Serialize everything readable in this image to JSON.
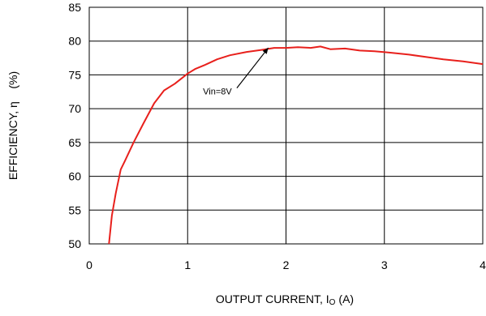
{
  "chart_data": {
    "type": "line",
    "title": "",
    "xlabel": "OUTPUT CURRENT, I",
    "xlabel_sub": "O",
    "xlabel_unit": "(A)",
    "ylabel": "EFFICIENCY, η    (%)",
    "xlim": [
      0,
      4
    ],
    "ylim": [
      50,
      85
    ],
    "x_ticks": [
      0,
      1,
      2,
      3,
      4
    ],
    "y_ticks": [
      50,
      55,
      60,
      65,
      70,
      75,
      80,
      85
    ],
    "grid": true,
    "line_color": "#e8201c",
    "series": [
      {
        "x": [
          0.2,
          0.23,
          0.27,
          0.32,
          0.36,
          0.45,
          0.55,
          0.66,
          0.76,
          0.87,
          1.0,
          1.08,
          1.18,
          1.3,
          1.43,
          1.6,
          1.75,
          1.88,
          2.0,
          2.12,
          2.25,
          2.35,
          2.45,
          2.6,
          2.75,
          2.9,
          3.05,
          3.25,
          3.45,
          3.6,
          3.8,
          4.0
        ],
        "values": [
          50.0,
          54.2,
          57.5,
          61.0,
          62.2,
          65.0,
          67.8,
          70.8,
          72.7,
          73.7,
          75.2,
          75.9,
          76.5,
          77.3,
          77.9,
          78.4,
          78.7,
          79.0,
          79.0,
          79.1,
          79.0,
          79.2,
          78.8,
          78.9,
          78.6,
          78.5,
          78.3,
          78.0,
          77.6,
          77.3,
          77.0,
          76.6
        ]
      }
    ],
    "annotations": [
      {
        "text": "Vin=8V",
        "x": 1.55,
        "y": 72.1,
        "arrow_to": [
          1.82,
          79.0
        ]
      }
    ]
  }
}
